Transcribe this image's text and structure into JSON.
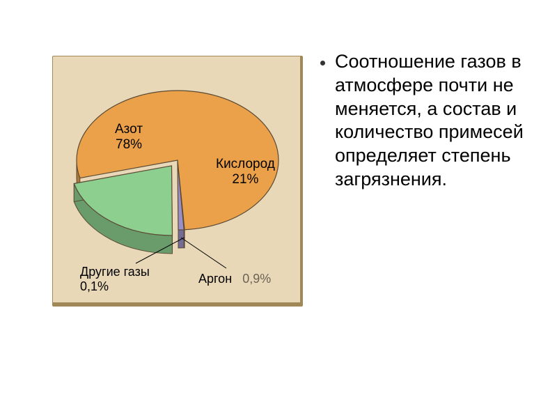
{
  "pie_chart": {
    "type": "pie",
    "background_panel": "#e8d8b8",
    "panel_border": "#a08858",
    "outline_color": "#5a4a35",
    "side_darken": 0.75,
    "label_fontsize": 19,
    "caption_fontsize": 18,
    "slices": [
      {
        "name": "Азот",
        "percent": 78,
        "color": "#eba04a",
        "label": "Азот",
        "value_label": "78%"
      },
      {
        "name": "Кислород",
        "percent": 21,
        "color": "#8ccf8e",
        "label": "Кислород",
        "value_label": "21%"
      },
      {
        "name": "Аргон",
        "percent": 0.9,
        "color": "#9a8fc8",
        "label": "Аргон",
        "value_label": "0,9%"
      },
      {
        "name": "Другие газы",
        "percent": 0.1,
        "color": "#d2b277",
        "label": "Другие газы",
        "value_label": "0,1%"
      }
    ]
  },
  "text": {
    "bullet": "Соотношение газов в атмосфере почти не меняется, а состав и количество примесей определяет степень загрязнения."
  }
}
